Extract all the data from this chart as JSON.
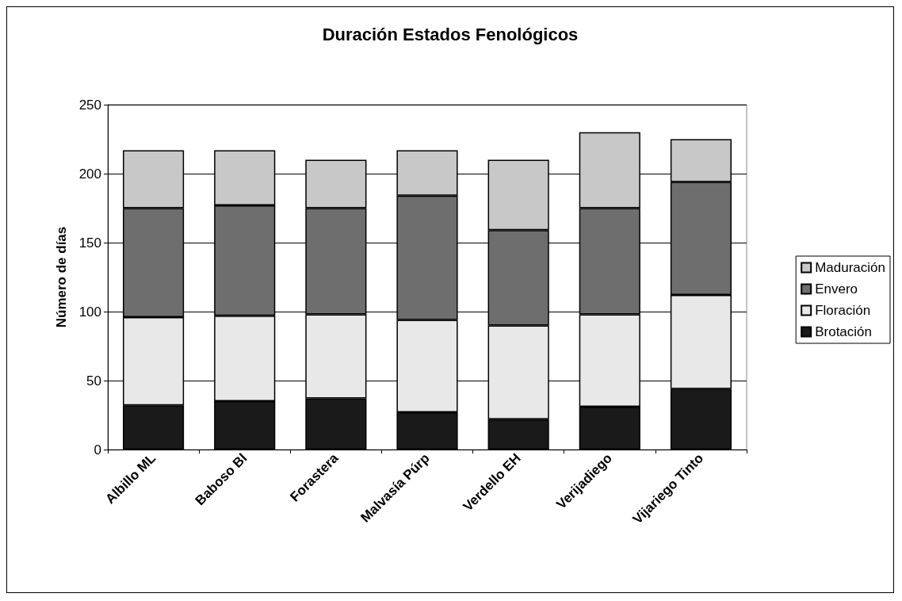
{
  "chart_data": {
    "type": "bar",
    "title": "Duración Estados Fenológicos",
    "ylabel": "Número de días",
    "categories": [
      "Albillo ML",
      "Baboso Bl",
      "Forastera",
      "Malvasía Púrp",
      "Verdello EH",
      "Verijadiego",
      "Vijariego Tinto"
    ],
    "stacked": true,
    "series": [
      {
        "name": "Brotación",
        "color": "#1a1a1a",
        "values": [
          32,
          35,
          37,
          27,
          22,
          31,
          44
        ]
      },
      {
        "name": "Floración",
        "color": "#e8e8e8",
        "values": [
          64,
          62,
          61,
          67,
          68,
          67,
          68
        ]
      },
      {
        "name": "Envero",
        "color": "#6e6e6e",
        "values": [
          79,
          80,
          77,
          90,
          69,
          77,
          82
        ]
      },
      {
        "name": "Maduración",
        "color": "#c8c8c8",
        "values": [
          42,
          40,
          35,
          33,
          51,
          55,
          31
        ]
      }
    ],
    "ylim": [
      0,
      250
    ],
    "yticks": [
      0,
      50,
      100,
      150,
      200,
      250
    ],
    "grid": "y",
    "legend": "right"
  }
}
